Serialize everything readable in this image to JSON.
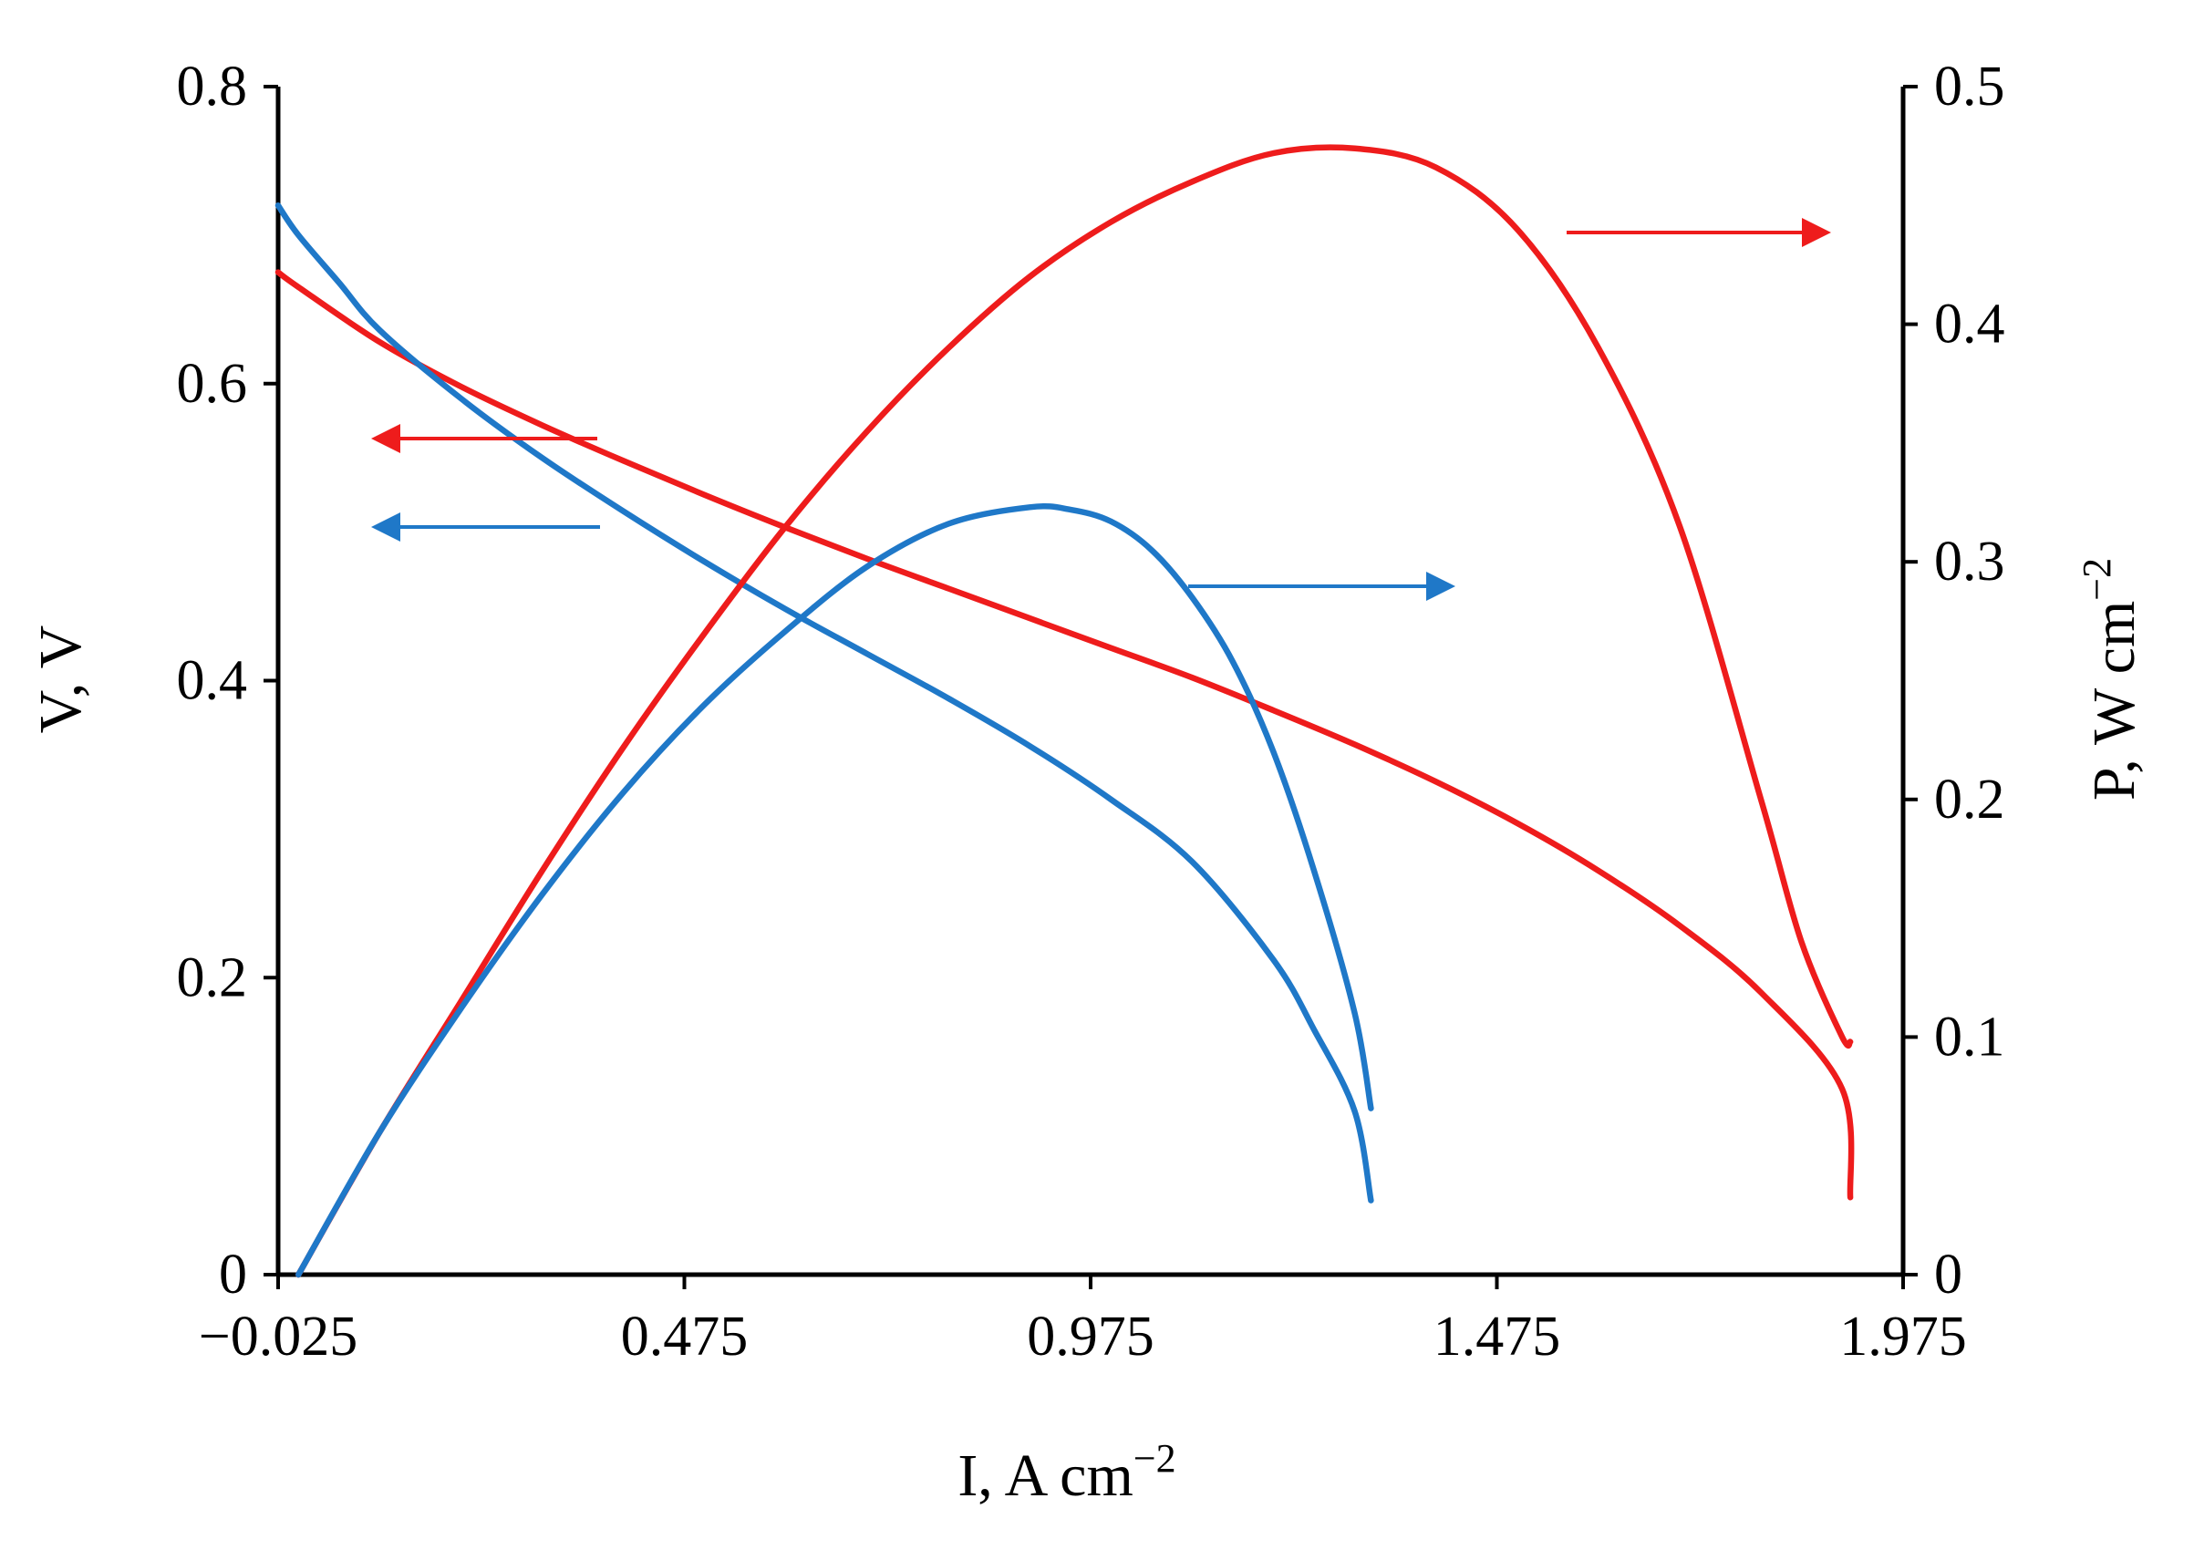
{
  "chart_data": {
    "type": "line",
    "title": "",
    "xlabel": "I, A cm",
    "xlabel_sup": "−2",
    "ylabel": "V, V",
    "y2label": "P, W cm",
    "y2label_sup": "−2",
    "xlim": [
      -0.025,
      1.975
    ],
    "ylim": [
      0,
      0.8
    ],
    "y2lim": [
      0,
      0.5
    ],
    "x_ticks": [
      "−0.025",
      "0.475",
      "0.975",
      "1.475",
      "1.975"
    ],
    "x_tick_values": [
      -0.025,
      0.475,
      0.975,
      1.475,
      1.975
    ],
    "y_ticks": [
      "0",
      "0.2",
      "0.4",
      "0.6",
      "0.8"
    ],
    "y_tick_values": [
      0,
      0.2,
      0.4,
      0.6,
      0.8
    ],
    "y2_ticks": [
      "0",
      "0.1",
      "0.2",
      "0.3",
      "0.4",
      "0.5"
    ],
    "y2_tick_values": [
      0,
      0.1,
      0.2,
      0.3,
      0.4,
      0.5
    ],
    "colors": {
      "red": "#ee1c1c",
      "blue": "#1f78c8"
    },
    "series": [
      {
        "name": "red-voltage",
        "axis": "left",
        "color": "#ee1c1c",
        "x": [
          -0.025,
          0.0,
          0.1,
          0.2,
          0.3,
          0.4,
          0.5,
          0.6,
          0.7,
          0.8,
          0.9,
          1.0,
          1.1,
          1.2,
          1.3,
          1.4,
          1.5,
          1.6,
          1.7,
          1.8,
          1.9,
          1.91
        ],
        "y": [
          0.675,
          0.665,
          0.628,
          0.598,
          0.572,
          0.548,
          0.525,
          0.503,
          0.482,
          0.462,
          0.442,
          0.422,
          0.402,
          0.38,
          0.357,
          0.332,
          0.304,
          0.272,
          0.235,
          0.19,
          0.125,
          0.052
        ]
      },
      {
        "name": "blue-voltage",
        "axis": "left",
        "color": "#1f78c8",
        "x": [
          -0.025,
          0.0,
          0.05,
          0.1,
          0.2,
          0.3,
          0.4,
          0.5,
          0.6,
          0.7,
          0.8,
          0.9,
          1.0,
          1.1,
          1.2,
          1.25,
          1.3,
          1.32
        ],
        "y": [
          0.72,
          0.7,
          0.668,
          0.636,
          0.59,
          0.55,
          0.514,
          0.48,
          0.448,
          0.418,
          0.388,
          0.356,
          0.32,
          0.278,
          0.212,
          0.165,
          0.11,
          0.05
        ]
      },
      {
        "name": "red-power",
        "axis": "right",
        "color": "#ee1c1c",
        "x": [
          0.0,
          0.1,
          0.2,
          0.3,
          0.4,
          0.5,
          0.6,
          0.7,
          0.8,
          0.9,
          1.0,
          1.1,
          1.2,
          1.3,
          1.4,
          1.5,
          1.6,
          1.7,
          1.8,
          1.85,
          1.9,
          1.91
        ],
        "y": [
          0.0,
          0.06,
          0.115,
          0.17,
          0.222,
          0.27,
          0.315,
          0.355,
          0.39,
          0.42,
          0.443,
          0.46,
          0.472,
          0.474,
          0.466,
          0.44,
          0.39,
          0.315,
          0.2,
          0.14,
          0.1,
          0.098
        ]
      },
      {
        "name": "blue-power",
        "axis": "right",
        "color": "#1f78c8",
        "x": [
          0.0,
          0.1,
          0.2,
          0.3,
          0.4,
          0.5,
          0.6,
          0.7,
          0.8,
          0.9,
          0.95,
          1.0,
          1.05,
          1.1,
          1.15,
          1.2,
          1.25,
          1.3,
          1.32
        ],
        "y": [
          0.0,
          0.06,
          0.112,
          0.16,
          0.203,
          0.24,
          0.271,
          0.298,
          0.316,
          0.323,
          0.322,
          0.317,
          0.305,
          0.285,
          0.258,
          0.22,
          0.17,
          0.11,
          0.07
        ]
      }
    ],
    "annotations": [
      {
        "name": "arrow-red-power-right",
        "color": "#ee1c1c",
        "direction": "right"
      },
      {
        "name": "arrow-red-voltage-left",
        "color": "#ee1c1c",
        "direction": "left"
      },
      {
        "name": "arrow-blue-voltage-left",
        "color": "#1f78c8",
        "direction": "left"
      },
      {
        "name": "arrow-blue-power-right",
        "color": "#1f78c8",
        "direction": "right"
      }
    ]
  }
}
